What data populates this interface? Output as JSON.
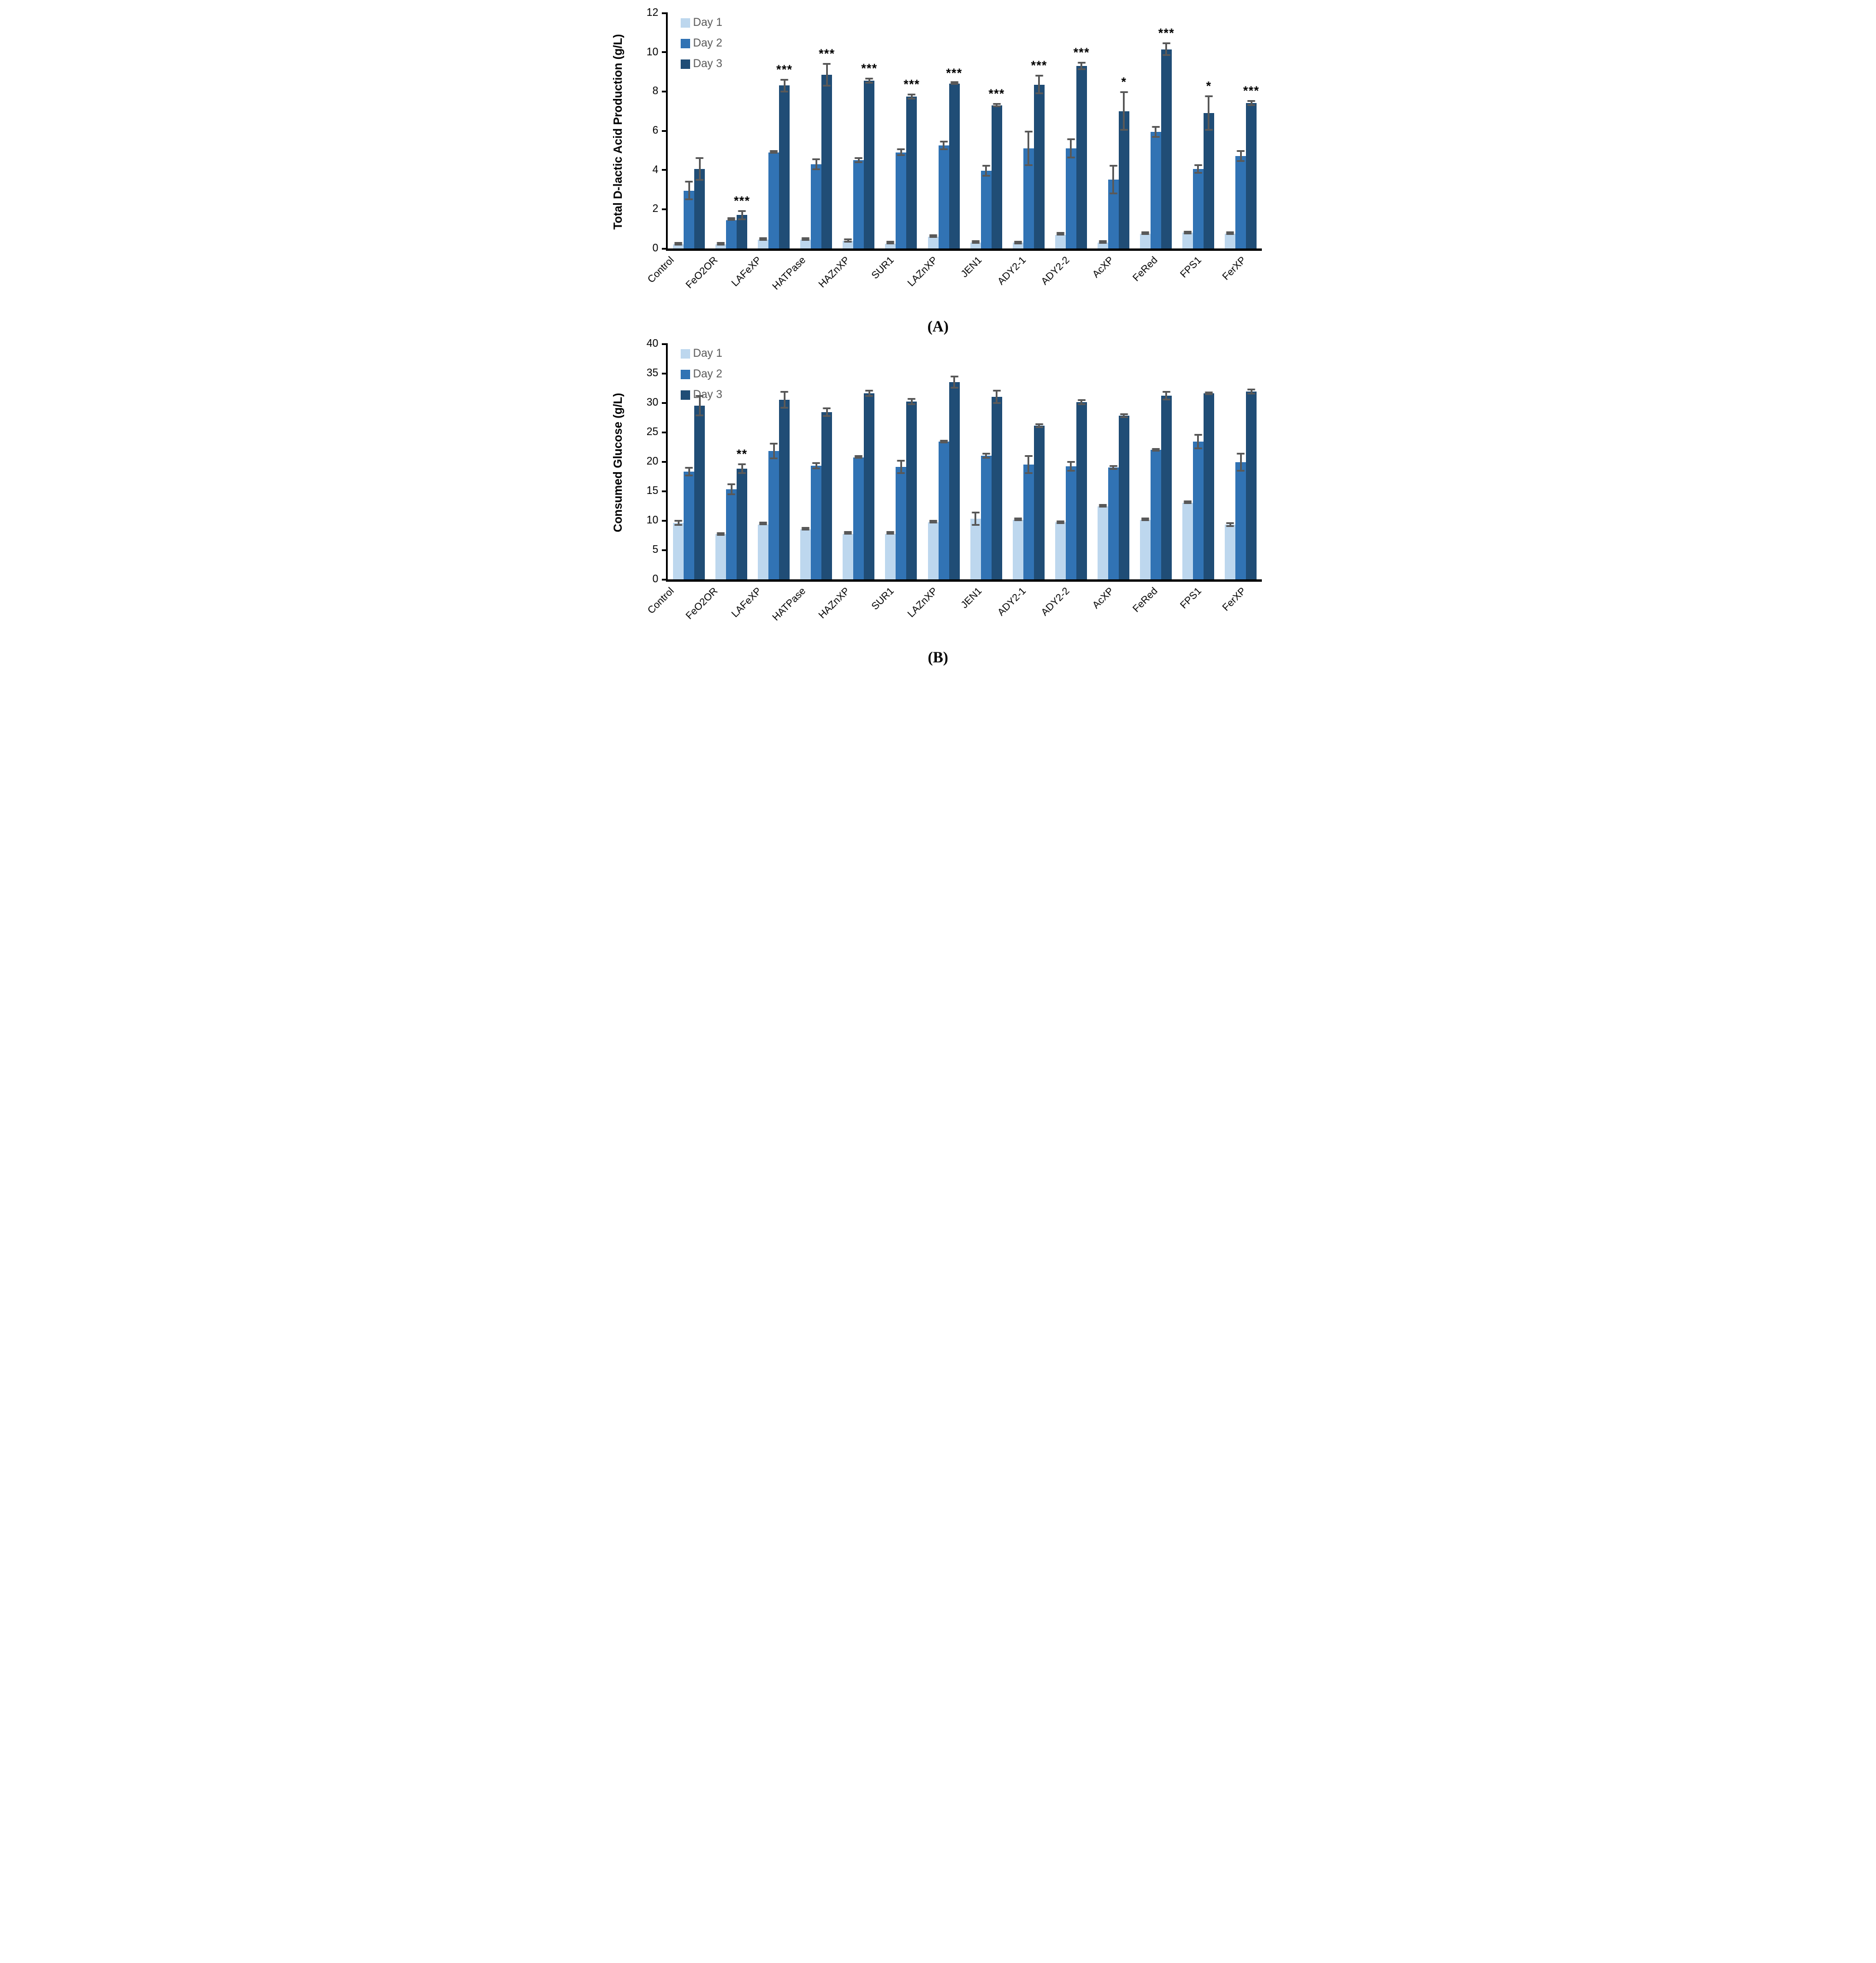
{
  "colors": {
    "day1": "#BDD7EE",
    "day2": "#3173B4",
    "day3": "#204D76",
    "error_bar": "#595959",
    "legend_text": "#595959",
    "axis": "#000000",
    "significance_text": "#000000"
  },
  "chart_data": [
    {
      "type": "bar",
      "panel": "A",
      "caption": "(A)",
      "ylabel": "Total D-lactic Acid Production (g/L)",
      "xlabel": "",
      "ylim": [
        0,
        12
      ],
      "ytick_step": 2,
      "grid": false,
      "legend_position": "top-left",
      "legend": [
        "Day 1",
        "Day 2",
        "Day 3"
      ],
      "categories": [
        "Control",
        "FeO2OR",
        "LAFeXP",
        "HATPase",
        "HAZnXP",
        "SUR1",
        "LAZnXP",
        "JEN1",
        "ADY2-1",
        "ADY2-2",
        "AcXP",
        "FeRed",
        "FPS1",
        "FerXP"
      ],
      "significance": [
        "",
        "***",
        "***",
        "***",
        "***",
        "***",
        "***",
        "***",
        "***",
        "***",
        "*",
        "***",
        "*",
        "***"
      ],
      "series": [
        {
          "name": "Day 1",
          "color_key": "day1",
          "values": [
            0.2,
            0.2,
            0.45,
            0.45,
            0.4,
            0.25,
            0.6,
            0.3,
            0.3,
            0.7,
            0.3,
            0.75,
            0.8,
            0.75
          ],
          "errors": [
            0.05,
            0.05,
            0.07,
            0.07,
            0.1,
            0.04,
            0.06,
            0.07,
            0.1,
            0.05,
            0.06,
            0.05,
            0.07,
            0.05
          ]
        },
        {
          "name": "Day 2",
          "color_key": "day2",
          "values": [
            2.95,
            1.45,
            4.9,
            4.3,
            4.5,
            4.9,
            5.25,
            3.95,
            5.1,
            5.1,
            3.5,
            5.95,
            4.05,
            4.7
          ],
          "errors": [
            0.5,
            0.05,
            0.07,
            0.3,
            0.15,
            0.2,
            0.25,
            0.3,
            0.9,
            0.5,
            0.75,
            0.3,
            0.25,
            0.3
          ]
        },
        {
          "name": "Day 3",
          "color_key": "day3",
          "values": [
            4.05,
            1.7,
            8.3,
            8.85,
            8.55,
            7.75,
            8.4,
            7.3,
            8.35,
            9.3,
            7.0,
            10.15,
            6.9,
            7.4
          ],
          "errors": [
            0.6,
            0.25,
            0.35,
            0.6,
            0.15,
            0.15,
            0.07,
            0.1,
            0.5,
            0.2,
            1.0,
            0.35,
            0.9,
            0.15
          ]
        }
      ]
    },
    {
      "type": "bar",
      "panel": "B",
      "caption": "(B)",
      "ylabel": "Consumed Glucose (g/L)",
      "xlabel": "",
      "ylim": [
        0,
        40
      ],
      "ytick_step": 5,
      "grid": false,
      "legend_position": "top-left",
      "legend": [
        "Day 1",
        "Day 2",
        "Day 3"
      ],
      "categories": [
        "Control",
        "FeO2OR",
        "LAFeXP",
        "HATPase",
        "HAZnXP",
        "SUR1",
        "LAZnXP",
        "JEN1",
        "ADY2-1",
        "ADY2-2",
        "AcXP",
        "FeRed",
        "FPS1",
        "FerXP"
      ],
      "significance": [
        "",
        "**",
        "",
        "",
        "",
        "",
        "",
        "",
        "",
        "",
        "",
        "",
        "",
        ""
      ],
      "series": [
        {
          "name": "Day 1",
          "color_key": "day1",
          "values": [
            9.6,
            7.7,
            9.3,
            8.5,
            7.7,
            7.7,
            9.7,
            10.3,
            10.1,
            9.7,
            12.4,
            10.1,
            13.0,
            9.3
          ],
          "errors": [
            0.5,
            0.3,
            0.1,
            0.15,
            0.1,
            0.1,
            0.15,
            1.2,
            0.2,
            0.3,
            0.2,
            0.2,
            0.15,
            0.4
          ]
        },
        {
          "name": "Day 2",
          "color_key": "day2",
          "values": [
            18.3,
            15.3,
            21.8,
            19.3,
            20.7,
            19.1,
            23.4,
            21.0,
            19.5,
            19.2,
            19.0,
            22.0,
            23.4,
            19.9
          ],
          "errors": [
            0.8,
            1.0,
            1.4,
            0.6,
            0.2,
            1.2,
            0.25,
            0.5,
            1.6,
            0.9,
            0.4,
            0.3,
            1.3,
            1.6
          ]
        },
        {
          "name": "Day 3",
          "color_key": "day3",
          "values": [
            29.5,
            18.8,
            30.5,
            28.4,
            31.6,
            30.2,
            33.5,
            31.0,
            26.1,
            30.1,
            27.8,
            31.2,
            31.6,
            31.9
          ],
          "errors": [
            1.8,
            0.9,
            1.5,
            0.8,
            0.6,
            0.6,
            1.1,
            1.2,
            0.4,
            0.5,
            0.4,
            0.8,
            0.3,
            0.5
          ]
        }
      ]
    }
  ]
}
